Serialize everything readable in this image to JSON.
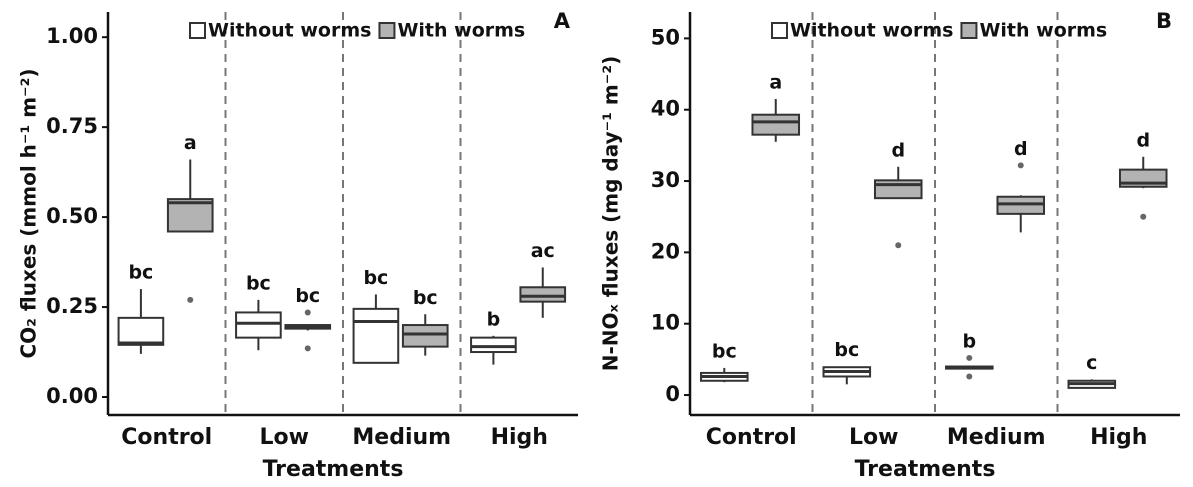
{
  "chart_data": [
    {
      "type": "box",
      "panel_label": "A",
      "y_label": "CO₂ fluxes (mmol h⁻¹ m⁻²)",
      "x_label": "Treatments",
      "categories": [
        "Control",
        "Low",
        "Medium",
        "High"
      ],
      "ylim": [
        -0.05,
        1.07
      ],
      "yticks": [
        {
          "value": 0,
          "label": "0.00"
        },
        {
          "value": 0.25,
          "label": "0.25"
        },
        {
          "value": 0.5,
          "label": "0.50"
        },
        {
          "value": 0.75,
          "label": "0.75"
        },
        {
          "value": 1,
          "label": "1.00"
        }
      ],
      "series": [
        {
          "name": "Without worms",
          "color": "#ffffff",
          "letters": [
            "bc",
            "bc",
            "bc",
            "b"
          ],
          "values": [
            {
              "min": 0.12,
              "q1": 0.145,
              "median": 0.15,
              "q3": 0.22,
              "max": 0.3,
              "outliers": []
            },
            {
              "min": 0.13,
              "q1": 0.165,
              "median": 0.205,
              "q3": 0.235,
              "max": 0.27,
              "outliers": []
            },
            {
              "min": 0.095,
              "q1": 0.095,
              "median": 0.21,
              "q3": 0.245,
              "max": 0.285,
              "outliers": []
            },
            {
              "min": 0.09,
              "q1": 0.125,
              "median": 0.14,
              "q3": 0.165,
              "max": 0.17,
              "outliers": []
            }
          ]
        },
        {
          "name": "With worms",
          "color": "#b3b3b3",
          "letters": [
            "a",
            "bc",
            "bc",
            "ac"
          ],
          "values": [
            {
              "min": 0.46,
              "q1": 0.46,
              "median": 0.54,
              "q3": 0.55,
              "max": 0.66,
              "outliers": [
                0.27
              ]
            },
            {
              "min": 0.185,
              "q1": 0.19,
              "median": 0.195,
              "q3": 0.2,
              "max": 0.2,
              "outliers": [
                0.235,
                0.135
              ]
            },
            {
              "min": 0.115,
              "q1": 0.14,
              "median": 0.175,
              "q3": 0.2,
              "max": 0.23,
              "outliers": []
            },
            {
              "min": 0.22,
              "q1": 0.265,
              "median": 0.28,
              "q3": 0.305,
              "max": 0.36,
              "outliers": []
            }
          ]
        }
      ]
    },
    {
      "type": "box",
      "panel_label": "B",
      "y_label": "N-NOₓ fluxes (mg day⁻¹ m⁻²)",
      "x_label": "Treatments",
      "categories": [
        "Control",
        "Low",
        "Medium",
        "High"
      ],
      "ylim": [
        -2.8,
        53.7
      ],
      "yticks": [
        0,
        10,
        20,
        30,
        40,
        50
      ],
      "series": [
        {
          "name": "Without worms",
          "color": "#ffffff",
          "letters": [
            "bc",
            "bc",
            "b",
            "c"
          ],
          "values": [
            {
              "min": 1.8,
              "q1": 2,
              "median": 2.6,
              "q3": 3.1,
              "max": 3.8,
              "outliers": []
            },
            {
              "min": 1.5,
              "q1": 2.6,
              "median": 3.3,
              "q3": 3.9,
              "max": 4.0,
              "outliers": []
            },
            {
              "min": 3.7,
              "q1": 3.7,
              "median": 3.9,
              "q3": 4.0,
              "max": 4.0,
              "outliers": [
                5.2,
                2.6
              ]
            },
            {
              "min": 1,
              "q1": 1,
              "median": 1.6,
              "q3": 2.0,
              "max": 2.2,
              "outliers": []
            }
          ]
        },
        {
          "name": "With worms",
          "color": "#b3b3b3",
          "letters": [
            "a",
            "d",
            "d",
            "d"
          ],
          "values": [
            {
              "min": 35.5,
              "q1": 36.5,
              "median": 38.3,
              "q3": 39.3,
              "max": 41.5,
              "outliers": []
            },
            {
              "min": 27.5,
              "q1": 27.6,
              "median": 29.5,
              "q3": 30.1,
              "max": 32,
              "outliers": [
                21
              ]
            },
            {
              "min": 22.8,
              "q1": 25.4,
              "median": 26.8,
              "q3": 27.8,
              "max": 28,
              "outliers": [
                32.2
              ]
            },
            {
              "min": 29,
              "q1": 29.2,
              "median": 29.7,
              "q3": 31.6,
              "max": 33.4,
              "outliers": [
                25
              ]
            }
          ]
        }
      ]
    }
  ]
}
